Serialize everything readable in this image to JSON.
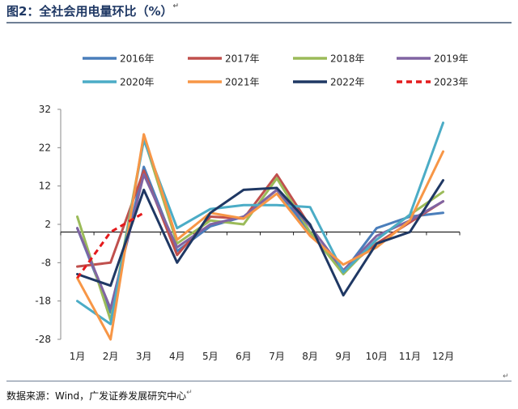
{
  "figure": {
    "title": "图2：全社会用电量环比（%）",
    "source": "数据来源：Wind，广发证券发展研究中心",
    "title_mark": "↵",
    "source_mark": "↵",
    "corner_mark": "↵"
  },
  "chart_data": {
    "type": "line",
    "title": "",
    "xlabel": "",
    "ylabel": "",
    "categories": [
      "1月",
      "2月",
      "3月",
      "4月",
      "5月",
      "6月",
      "7月",
      "8月",
      "9月",
      "10月",
      "11月",
      "12月"
    ],
    "y_ticks": [
      32,
      22,
      12,
      2,
      -8,
      -18,
      -28
    ],
    "ylim": [
      -28,
      32
    ],
    "baseline": 0,
    "grid": false,
    "legend_position": "top",
    "series": [
      {
        "name": "2016年",
        "color": "#4a7ebb",
        "dash": false,
        "values": [
          1,
          -21,
          17,
          -5,
          1.5,
          4,
          11,
          0,
          -10.5,
          1,
          4,
          5
        ]
      },
      {
        "name": "2017年",
        "color": "#c0504d",
        "dash": false,
        "values": [
          -9,
          -8,
          16,
          -6,
          4,
          3.5,
          15,
          1.5,
          -10,
          -3,
          2.5,
          8
        ]
      },
      {
        "name": "2018年",
        "color": "#9bbb59",
        "dash": false,
        "values": [
          4,
          -23,
          24.5,
          -3,
          3,
          2,
          14,
          0,
          -11,
          -2,
          4.5,
          10.5
        ]
      },
      {
        "name": "2019年",
        "color": "#8064a2",
        "dash": false,
        "values": [
          1,
          -20,
          15,
          -4,
          2,
          4,
          11,
          1.5,
          -10,
          -1,
          3,
          8
        ]
      },
      {
        "name": "2020年",
        "color": "#4bacc6",
        "dash": false,
        "values": [
          -18,
          -24,
          24,
          1,
          6,
          7,
          7,
          6.5,
          -10.5,
          -2,
          4.5,
          28.5
        ]
      },
      {
        "name": "2021年",
        "color": "#f79646",
        "dash": false,
        "values": [
          -12,
          -28,
          25.5,
          -2,
          5,
          3.5,
          10,
          -1,
          -8.5,
          -4,
          3,
          21
        ]
      },
      {
        "name": "2022年",
        "color": "#1f3864",
        "dash": false,
        "values": [
          -11,
          -14,
          11,
          -8,
          5,
          11,
          11.5,
          2,
          -16.5,
          -3,
          0,
          13.5
        ]
      },
      {
        "name": "2023年",
        "color": "#e41a1c",
        "dash": true,
        "values": [
          -12,
          0,
          5,
          null,
          null,
          null,
          null,
          null,
          null,
          null,
          null,
          null
        ]
      }
    ]
  }
}
